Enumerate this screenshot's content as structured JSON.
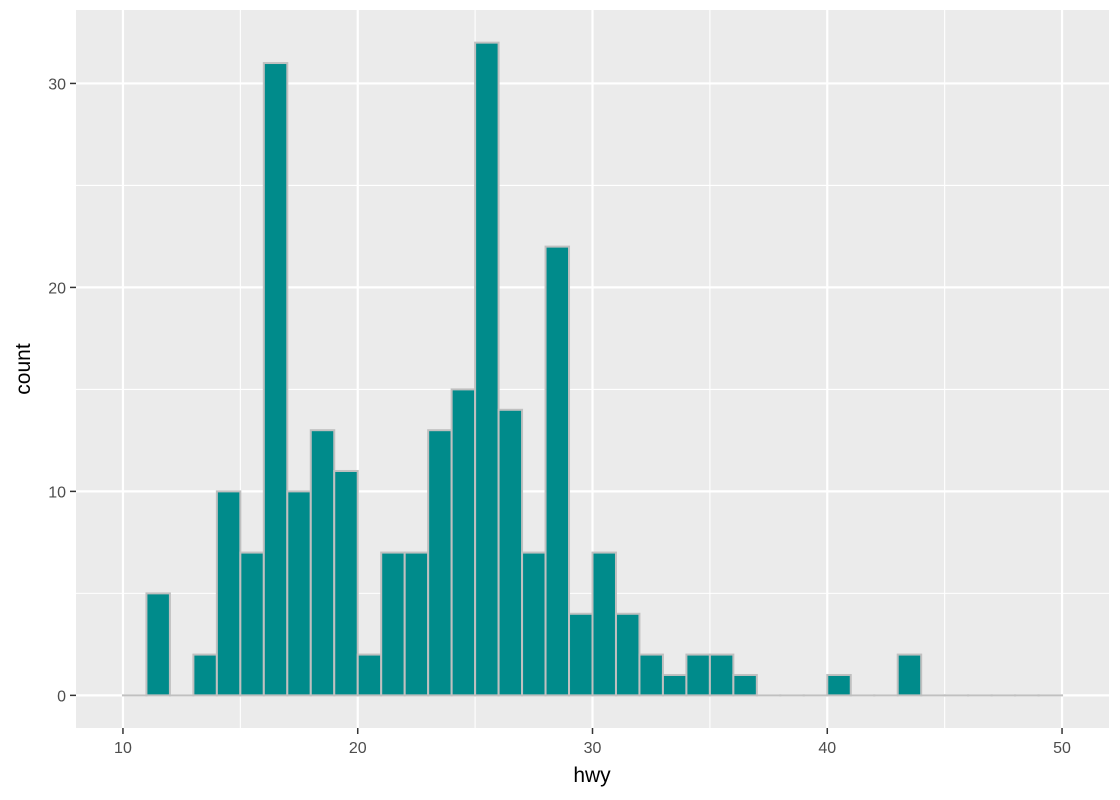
{
  "chart_data": {
    "type": "bar",
    "title": "",
    "xlabel": "hwy",
    "ylabel": "count",
    "xlim": [
      8,
      52
    ],
    "ylim": [
      -1.6,
      33.6
    ],
    "x_ticks": [
      10,
      20,
      30,
      40,
      50
    ],
    "y_ticks": [
      0,
      10,
      20,
      30
    ],
    "bin_width": 1,
    "bins": [
      {
        "start": 10,
        "count": 0
      },
      {
        "start": 11,
        "count": 5
      },
      {
        "start": 12,
        "count": 0
      },
      {
        "start": 13,
        "count": 2
      },
      {
        "start": 14,
        "count": 10
      },
      {
        "start": 15,
        "count": 7
      },
      {
        "start": 16,
        "count": 31
      },
      {
        "start": 17,
        "count": 10
      },
      {
        "start": 18,
        "count": 13
      },
      {
        "start": 19,
        "count": 11
      },
      {
        "start": 20,
        "count": 2
      },
      {
        "start": 21,
        "count": 7
      },
      {
        "start": 22,
        "count": 7
      },
      {
        "start": 23,
        "count": 13
      },
      {
        "start": 24,
        "count": 15
      },
      {
        "start": 25,
        "count": 32
      },
      {
        "start": 26,
        "count": 14
      },
      {
        "start": 27,
        "count": 7
      },
      {
        "start": 28,
        "count": 22
      },
      {
        "start": 29,
        "count": 4
      },
      {
        "start": 30,
        "count": 7
      },
      {
        "start": 31,
        "count": 4
      },
      {
        "start": 32,
        "count": 2
      },
      {
        "start": 33,
        "count": 1
      },
      {
        "start": 34,
        "count": 2
      },
      {
        "start": 35,
        "count": 2
      },
      {
        "start": 36,
        "count": 1
      },
      {
        "start": 37,
        "count": 0
      },
      {
        "start": 38,
        "count": 0
      },
      {
        "start": 39,
        "count": 0
      },
      {
        "start": 40,
        "count": 1
      },
      {
        "start": 41,
        "count": 0
      },
      {
        "start": 42,
        "count": 0
      },
      {
        "start": 43,
        "count": 2
      },
      {
        "start": 44,
        "count": 0
      },
      {
        "start": 45,
        "count": 0
      },
      {
        "start": 46,
        "count": 0
      },
      {
        "start": 47,
        "count": 0
      },
      {
        "start": 48,
        "count": 0
      },
      {
        "start": 49,
        "count": 0
      }
    ],
    "grid": true,
    "colors": {
      "fill": "#008b8b",
      "outline": "#c0c0c0",
      "panel": "#ebebeb",
      "grid": "#ffffff"
    }
  }
}
